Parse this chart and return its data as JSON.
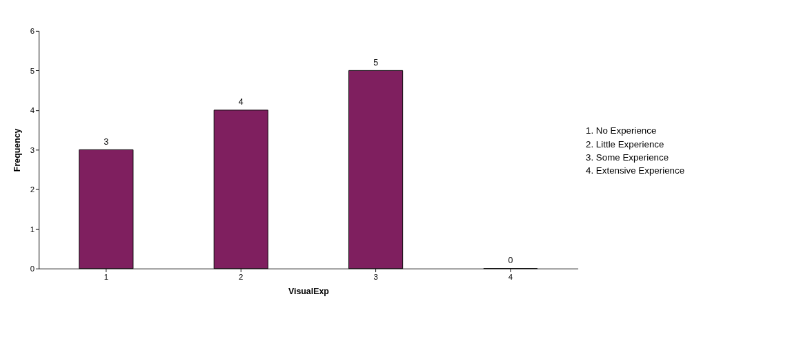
{
  "chart_data": {
    "type": "bar",
    "xlabel": "VisualExp",
    "ylabel": "Frequency",
    "categories": [
      "1",
      "2",
      "3",
      "4"
    ],
    "values": [
      3,
      4,
      5,
      0
    ],
    "color": "#7f1f5f",
    "ylim": [
      0,
      6
    ],
    "yticks": [
      0,
      1,
      2,
      3,
      4,
      5,
      6
    ],
    "grid": false,
    "data_labels": true,
    "annotations": [
      "1. No Experience",
      "2. Little Experience",
      "3. Some Experience",
      "4. Extensive Experience"
    ]
  }
}
